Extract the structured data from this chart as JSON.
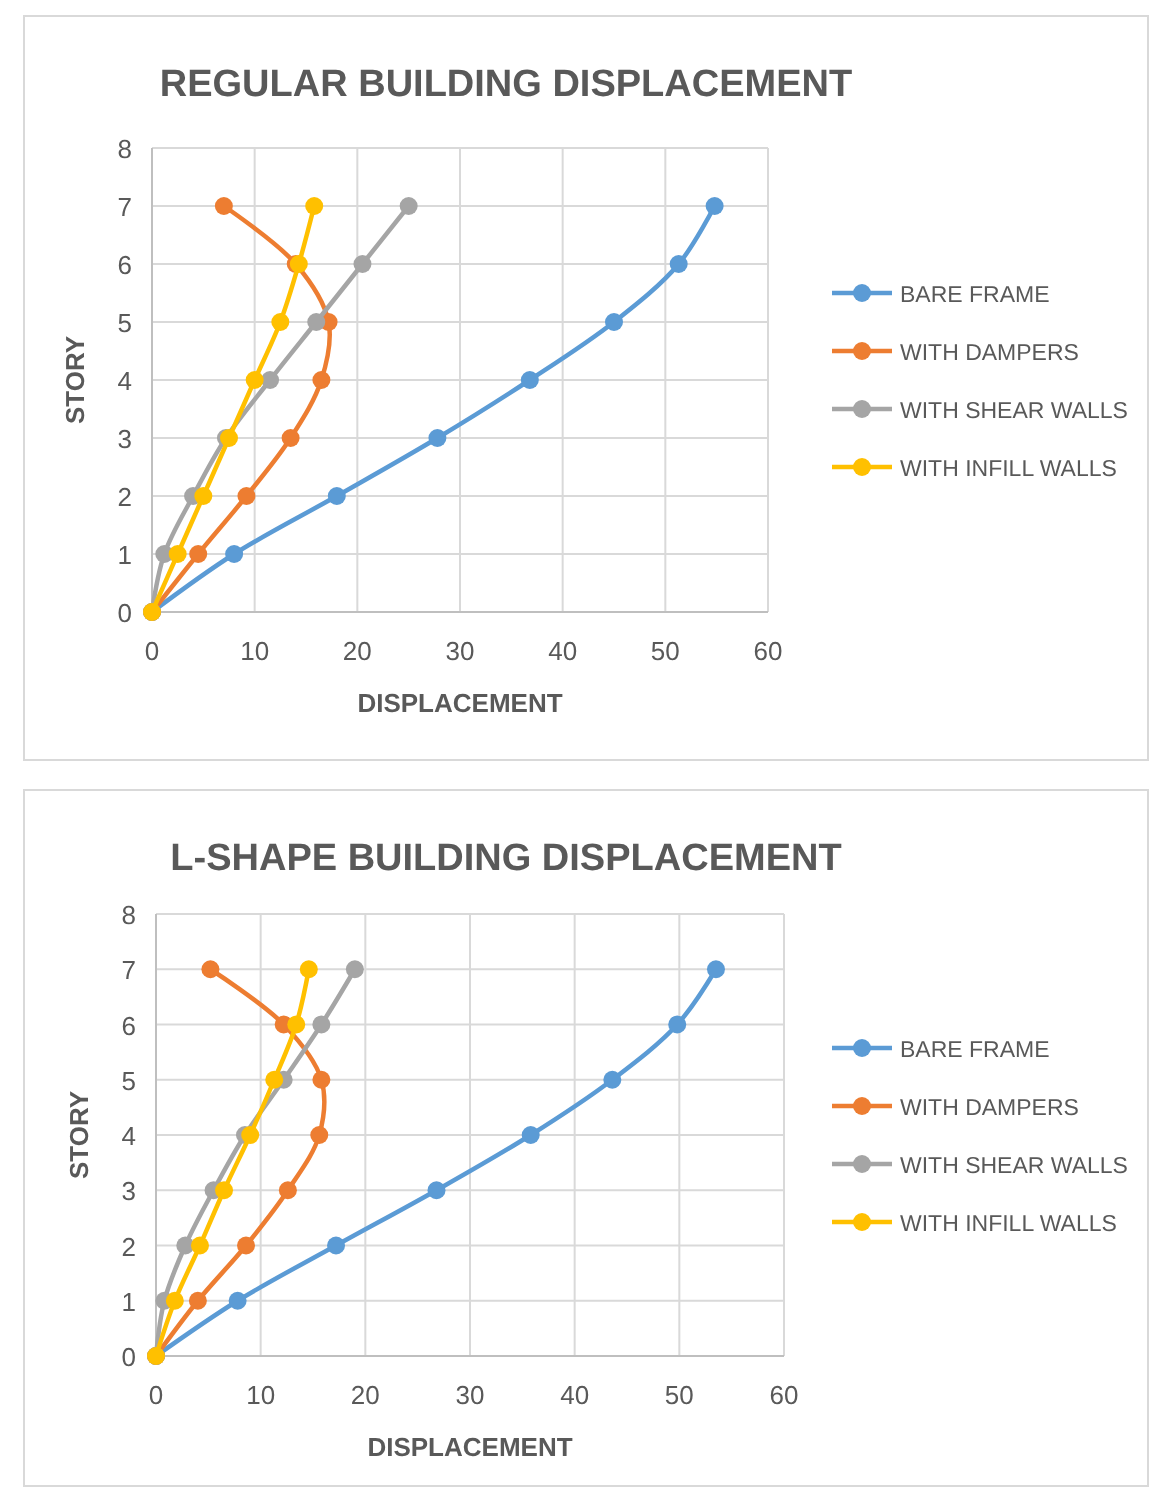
{
  "chart_data": [
    {
      "type": "line",
      "title": "REGULAR BUILDING DISPLACEMENT",
      "xlabel": "DISPLACEMENT",
      "ylabel": "STORY",
      "xlim": [
        0,
        60
      ],
      "xticks": [
        0,
        10,
        20,
        30,
        40,
        50,
        60
      ],
      "ylim": [
        0,
        8
      ],
      "yticks": [
        0,
        1,
        2,
        3,
        4,
        5,
        6,
        7,
        8
      ],
      "grid": true,
      "legend": "right",
      "marker": "circle",
      "series": [
        {
          "name": "BARE FRAME",
          "color": "#5b9bd5",
          "x": [
            0,
            8,
            18,
            27.8,
            36.8,
            45,
            51.3,
            54.8
          ],
          "values": [
            0,
            1,
            2,
            3,
            4,
            5,
            6,
            7
          ]
        },
        {
          "name": "WITH DAMPERS",
          "color": "#ed7d31",
          "x": [
            0,
            4.5,
            9.2,
            13.5,
            16.5,
            17.2,
            14,
            7
          ],
          "values": [
            0,
            1,
            2,
            3,
            4,
            5,
            6,
            7
          ]
        },
        {
          "name": "WITH SHEAR WALLS",
          "color": "#a5a5a5",
          "x": [
            0,
            1.2,
            4,
            7.2,
            11.5,
            16,
            20.5,
            25
          ],
          "values": [
            0,
            1,
            2,
            3,
            4,
            5,
            6,
            7
          ]
        },
        {
          "name": "WITH INFILL WALLS",
          "color": "#ffc000",
          "x": [
            0,
            2.5,
            5,
            7.5,
            10,
            12.5,
            14.3,
            15.8
          ],
          "values": [
            0,
            1,
            2,
            3,
            4,
            5,
            6,
            7
          ]
        }
      ]
    },
    {
      "type": "line",
      "title": "L-SHAPE BUILDING DISPLACEMENT",
      "xlabel": "DISPLACEMENT",
      "ylabel": "STORY",
      "xlim": [
        0,
        60
      ],
      "xticks": [
        0,
        10,
        20,
        30,
        40,
        50,
        60
      ],
      "ylim": [
        0,
        8
      ],
      "yticks": [
        0,
        1,
        2,
        3,
        4,
        5,
        6,
        7,
        8
      ],
      "grid": true,
      "legend": "right",
      "marker": "circle",
      "series": [
        {
          "name": "BARE FRAME",
          "color": "#5b9bd5",
          "x": [
            0,
            7.8,
            17.2,
            26.8,
            35.8,
            43.6,
            49.8,
            53.5
          ],
          "values": [
            0,
            1,
            2,
            3,
            4,
            5,
            6,
            7
          ]
        },
        {
          "name": "WITH DAMPERS",
          "color": "#ed7d31",
          "x": [
            0,
            4,
            8.6,
            12.6,
            15.6,
            15.8,
            12.2,
            5.2
          ],
          "values": [
            0,
            1,
            2,
            3,
            4,
            5,
            6,
            7
          ]
        },
        {
          "name": "WITH SHEAR WALLS",
          "color": "#a5a5a5",
          "x": [
            0,
            0.8,
            2.8,
            5.5,
            8.5,
            12.2,
            15.8,
            19
          ],
          "values": [
            0,
            1,
            2,
            3,
            4,
            5,
            6,
            7
          ]
        },
        {
          "name": "WITH INFILL WALLS",
          "color": "#ffc000",
          "x": [
            0,
            1.8,
            4.2,
            6.5,
            9,
            11.3,
            13.4,
            14.6
          ],
          "values": [
            0,
            1,
            2,
            3,
            4,
            5,
            6,
            7
          ]
        }
      ]
    }
  ]
}
